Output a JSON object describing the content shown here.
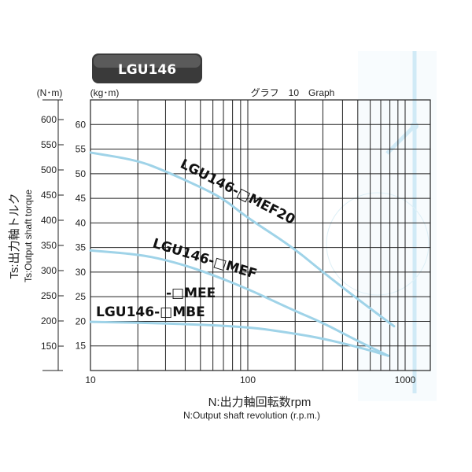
{
  "badge": "LGU146",
  "graph_caption": "グラフ　10　Graph",
  "chart_data": {
    "type": "line",
    "x_scale": "log",
    "xlim": [
      10,
      1500
    ],
    "x_ticks": [
      10,
      100,
      1000
    ],
    "x_tick_labels": [
      "10",
      "100",
      "1000"
    ],
    "xlabel": "N:出力軸回転数rpm",
    "xlabel_en": "N:Output shaft revolution (r.p.m.)",
    "ylabel": "Ts:出力軸トルク",
    "ylabel_en": "Ts:Output shaft torque",
    "y_unit_kgm": "(kg･m)",
    "y_unit_nm": "(N･m)",
    "ylim_kgm": [
      10,
      65
    ],
    "y_ticks_kgm": [
      15,
      20,
      25,
      30,
      35,
      40,
      45,
      50,
      55,
      60
    ],
    "y_ticks_nm": [
      150,
      200,
      250,
      300,
      350,
      400,
      450,
      500,
      550,
      600
    ],
    "grid": true,
    "line_color": "#9fd3e8",
    "series": [
      {
        "name": "LGU146-□MEF20",
        "x": [
          10,
          20,
          30,
          50,
          70,
          100,
          190,
          300,
          500,
          850
        ],
        "y": [
          54.3,
          52.7,
          50.5,
          47.3,
          44.9,
          41,
          35.2,
          30,
          24.5,
          19
        ]
      },
      {
        "name": "LGU146-□MEF",
        "x": [
          10,
          20,
          30,
          50,
          100,
          190,
          300,
          500,
          780
        ],
        "y": [
          34.4,
          33.6,
          32.5,
          30.4,
          26.6,
          22.4,
          19.7,
          16,
          13
        ]
      },
      {
        "name": "LGU146-□MBE / -□MEE",
        "x": [
          10,
          30,
          100,
          200,
          300,
          500,
          780
        ],
        "y": [
          19.9,
          19.6,
          18.9,
          17.5,
          16.5,
          14.8,
          13
        ]
      }
    ],
    "curve_labels": [
      "LGU146-□MEF20",
      "LGU146-□MEF",
      "-□MEE",
      "LGU146-□MBE"
    ]
  }
}
